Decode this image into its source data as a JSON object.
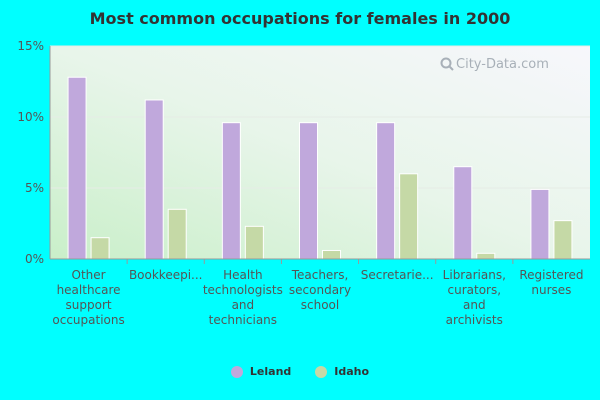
{
  "chart_data": {
    "type": "bar",
    "title": "Most common occupations for females in 2000",
    "categories": [
      [
        "Other",
        "healthcare",
        "support",
        "occupations"
      ],
      [
        "Bookkeepi..."
      ],
      [
        "Health",
        "technologists",
        "and",
        "technicians"
      ],
      [
        "Teachers,",
        "secondary",
        "school"
      ],
      [
        "Secretarie..."
      ],
      [
        "Librarians,",
        "curators,",
        "and",
        "archivists"
      ],
      [
        "Registered",
        "nurses"
      ]
    ],
    "series": [
      {
        "name": "Leland",
        "color": "#c0a8dc",
        "values": [
          12.8,
          11.2,
          9.6,
          9.6,
          9.6,
          6.5,
          4.9
        ]
      },
      {
        "name": "Idaho",
        "color": "#c5d9a6",
        "values": [
          1.5,
          3.5,
          2.3,
          0.6,
          6.0,
          0.4,
          2.7
        ]
      }
    ],
    "y_ticks": [
      "0%",
      "5%",
      "10%",
      "15%"
    ],
    "ylim": [
      0,
      15
    ],
    "grid": true,
    "legend_position": "bottom-center",
    "watermark": "City-Data.com"
  }
}
